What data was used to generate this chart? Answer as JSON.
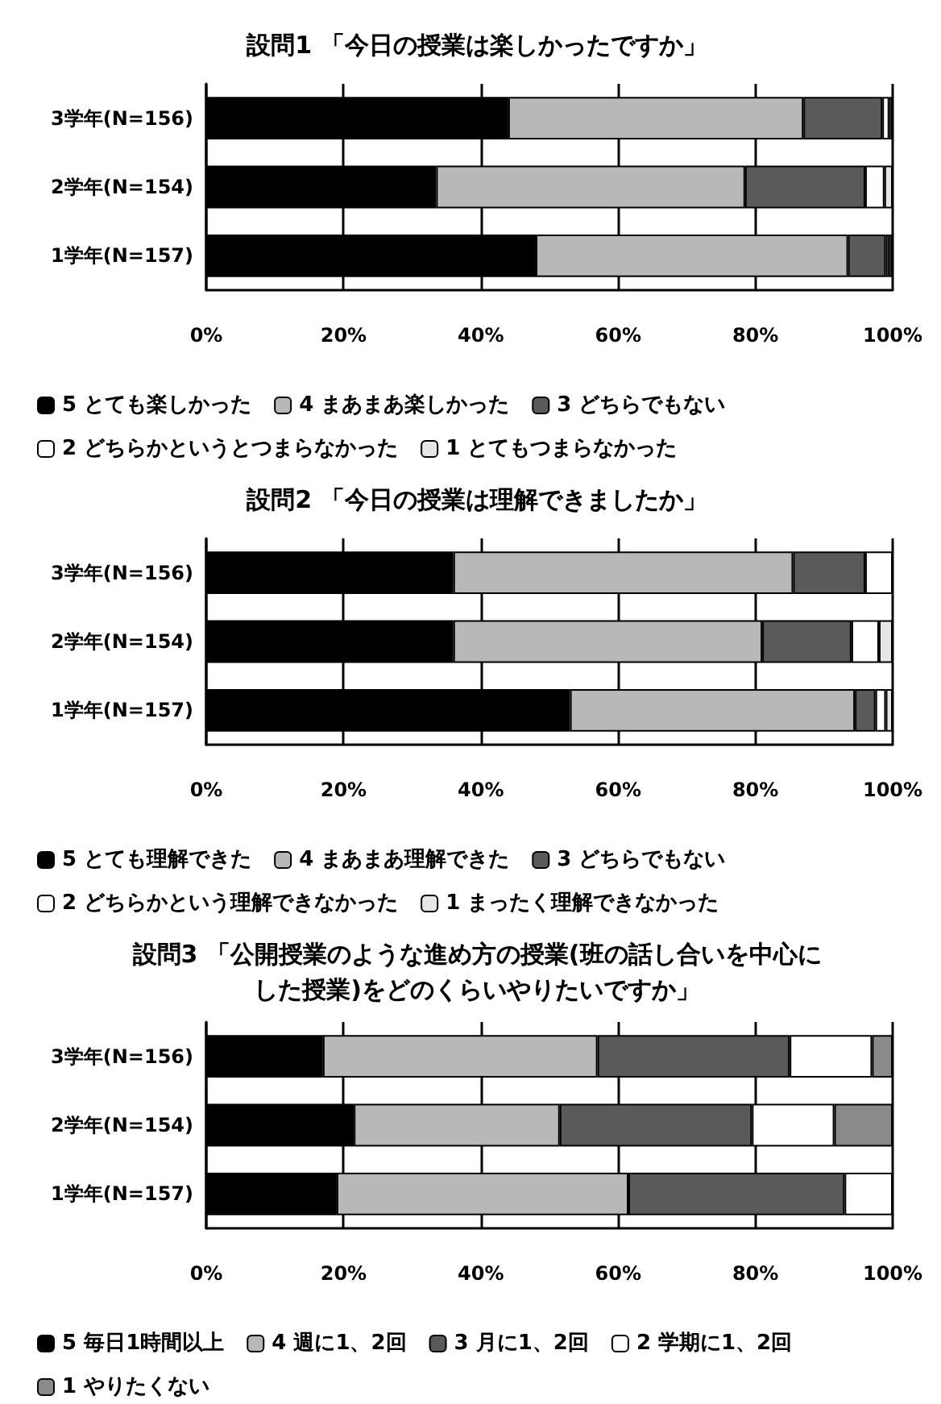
{
  "chart_data": [
    {
      "type": "bar",
      "orientation": "horizontal",
      "stacked": true,
      "title": "設問1 「今日の授業は楽しかったですか」",
      "categories": [
        "3学年(N=156)",
        "2学年(N=154)",
        "1学年(N=157)"
      ],
      "xlim": [
        0,
        100
      ],
      "xticks": [
        {
          "value": 0,
          "label": "0%"
        },
        {
          "value": 20,
          "label": "20%"
        },
        {
          "value": 40,
          "label": "40%"
        },
        {
          "value": 60,
          "label": "60%"
        },
        {
          "value": 80,
          "label": "80%"
        },
        {
          "value": 100,
          "label": "100%"
        }
      ],
      "grid": "x",
      "legend": "bottom",
      "series": [
        {
          "name": "5 とても楽しかった",
          "color": "#000000",
          "values": [
            44,
            33.5,
            48
          ]
        },
        {
          "name": "4 まあまあ楽しかった",
          "color": "#b8b8b8",
          "values": [
            43,
            45,
            45.5
          ]
        },
        {
          "name": "3 どちらでもない",
          "color": "#5a5a5a",
          "values": [
            11.5,
            17.5,
            5.5
          ]
        },
        {
          "name": "2 どちらかというとつまらなかった",
          "color": "#ffffff",
          "values": [
            1,
            2.8,
            0.5
          ]
        },
        {
          "name": "1 とてもつまらなかった",
          "color": "#e6e6e6",
          "values": [
            0.5,
            1.2,
            0.5
          ]
        }
      ]
    },
    {
      "type": "bar",
      "orientation": "horizontal",
      "stacked": true,
      "title": "設問2 「今日の授業は理解できましたか」",
      "categories": [
        "3学年(N=156)",
        "2学年(N=154)",
        "1学年(N=157)"
      ],
      "xlim": [
        0,
        100
      ],
      "xticks": [
        {
          "value": 0,
          "label": "0%"
        },
        {
          "value": 20,
          "label": "20%"
        },
        {
          "value": 40,
          "label": "40%"
        },
        {
          "value": 60,
          "label": "60%"
        },
        {
          "value": 80,
          "label": "80%"
        },
        {
          "value": 100,
          "label": "100%"
        }
      ],
      "grid": "x",
      "legend": "bottom",
      "series": [
        {
          "name": "5 とても理解できた",
          "color": "#000000",
          "values": [
            36,
            36,
            53
          ]
        },
        {
          "name": "4 まあまあ理解できた",
          "color": "#b8b8b8",
          "values": [
            49.5,
            45,
            41.5
          ]
        },
        {
          "name": "3 どちらでもない",
          "color": "#5a5a5a",
          "values": [
            10.5,
            13,
            3
          ]
        },
        {
          "name": "2 どちらかという理解できなかった",
          "color": "#ffffff",
          "values": [
            4,
            4,
            1.5
          ]
        },
        {
          "name": "1 まったく理解できなかった",
          "color": "#e6e6e6",
          "values": [
            0,
            2,
            1
          ]
        }
      ]
    },
    {
      "type": "bar",
      "orientation": "horizontal",
      "stacked": true,
      "title": "設問3 「公開授業のような進め方の授業(班の話し合いを中心にした授業)をどのくらいやりたいですか」",
      "categories": [
        "3学年(N=156)",
        "2学年(N=154)",
        "1学年(N=157)"
      ],
      "xlim": [
        0,
        100
      ],
      "xticks": [
        {
          "value": 0,
          "label": "0%"
        },
        {
          "value": 20,
          "label": "20%"
        },
        {
          "value": 40,
          "label": "40%"
        },
        {
          "value": 60,
          "label": "60%"
        },
        {
          "value": 80,
          "label": "80%"
        },
        {
          "value": 100,
          "label": "100%"
        }
      ],
      "grid": "x",
      "legend": "bottom",
      "series": [
        {
          "name": "5 毎日1時間以上",
          "color": "#000000",
          "values": [
            17,
            21.5,
            19
          ]
        },
        {
          "name": "4 週に1、2回",
          "color": "#b8b8b8",
          "values": [
            40,
            30,
            42.5
          ]
        },
        {
          "name": "3 月に1、2回",
          "color": "#5a5a5a",
          "values": [
            28,
            28,
            31.5
          ]
        },
        {
          "name": "2 学期に1、2回",
          "color": "#ffffff",
          "values": [
            12,
            12,
            7
          ]
        },
        {
          "name": "1 やりたくない",
          "color": "#8a8a8a",
          "values": [
            3,
            8.5,
            0
          ]
        }
      ]
    }
  ]
}
